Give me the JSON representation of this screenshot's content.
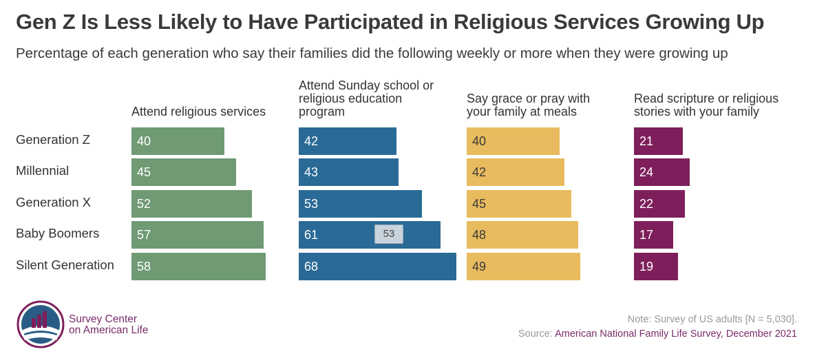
{
  "title": "Gen Z Is Less Likely to Have Participated in Religious Services Growing Up",
  "subtitle": "Percentage of each generation who say their families did the following weekly or more when they were growing up",
  "chart_data": {
    "type": "bar",
    "orientation": "horizontal",
    "categories": [
      "Generation Z",
      "Millennial",
      "Generation X",
      "Baby Boomers",
      "Silent Generation"
    ],
    "series": [
      {
        "name": "Attend religious services",
        "color": "#6f9a74",
        "label_color": "#ffffff",
        "values": [
          40,
          45,
          52,
          57,
          58
        ]
      },
      {
        "name": "Attend Sunday school or religious education program",
        "color": "#2a6a96",
        "label_color": "#ffffff",
        "values": [
          42,
          43,
          53,
          61,
          68
        ]
      },
      {
        "name": "Say grace or pray with your family at meals",
        "color": "#e8bb5e",
        "label_color": "#3a3a3a",
        "values": [
          40,
          42,
          45,
          48,
          49
        ]
      },
      {
        "name": "Read scripture or religious stories with your family",
        "color": "#7e1f5b",
        "label_color": "#ffffff",
        "values": [
          21,
          24,
          22,
          17,
          19
        ]
      }
    ],
    "column_headers": [
      [
        "Attend religious services"
      ],
      [
        "Attend Sunday school or",
        "religious education",
        "program"
      ],
      [
        "Say grace or pray with",
        "your family at meals"
      ],
      [
        "Read scripture or religious",
        "stories with your family"
      ]
    ],
    "tooltip": "53"
  },
  "logo": {
    "line1": "Survey Center",
    "line2": "on American Life",
    "icon": "bar-chart-globe-icon"
  },
  "note": "Note: Survey of US adults [N = 5,030].",
  "source": {
    "prefix": "Source: ",
    "name": "American National Family Life Survey, December 2021"
  }
}
